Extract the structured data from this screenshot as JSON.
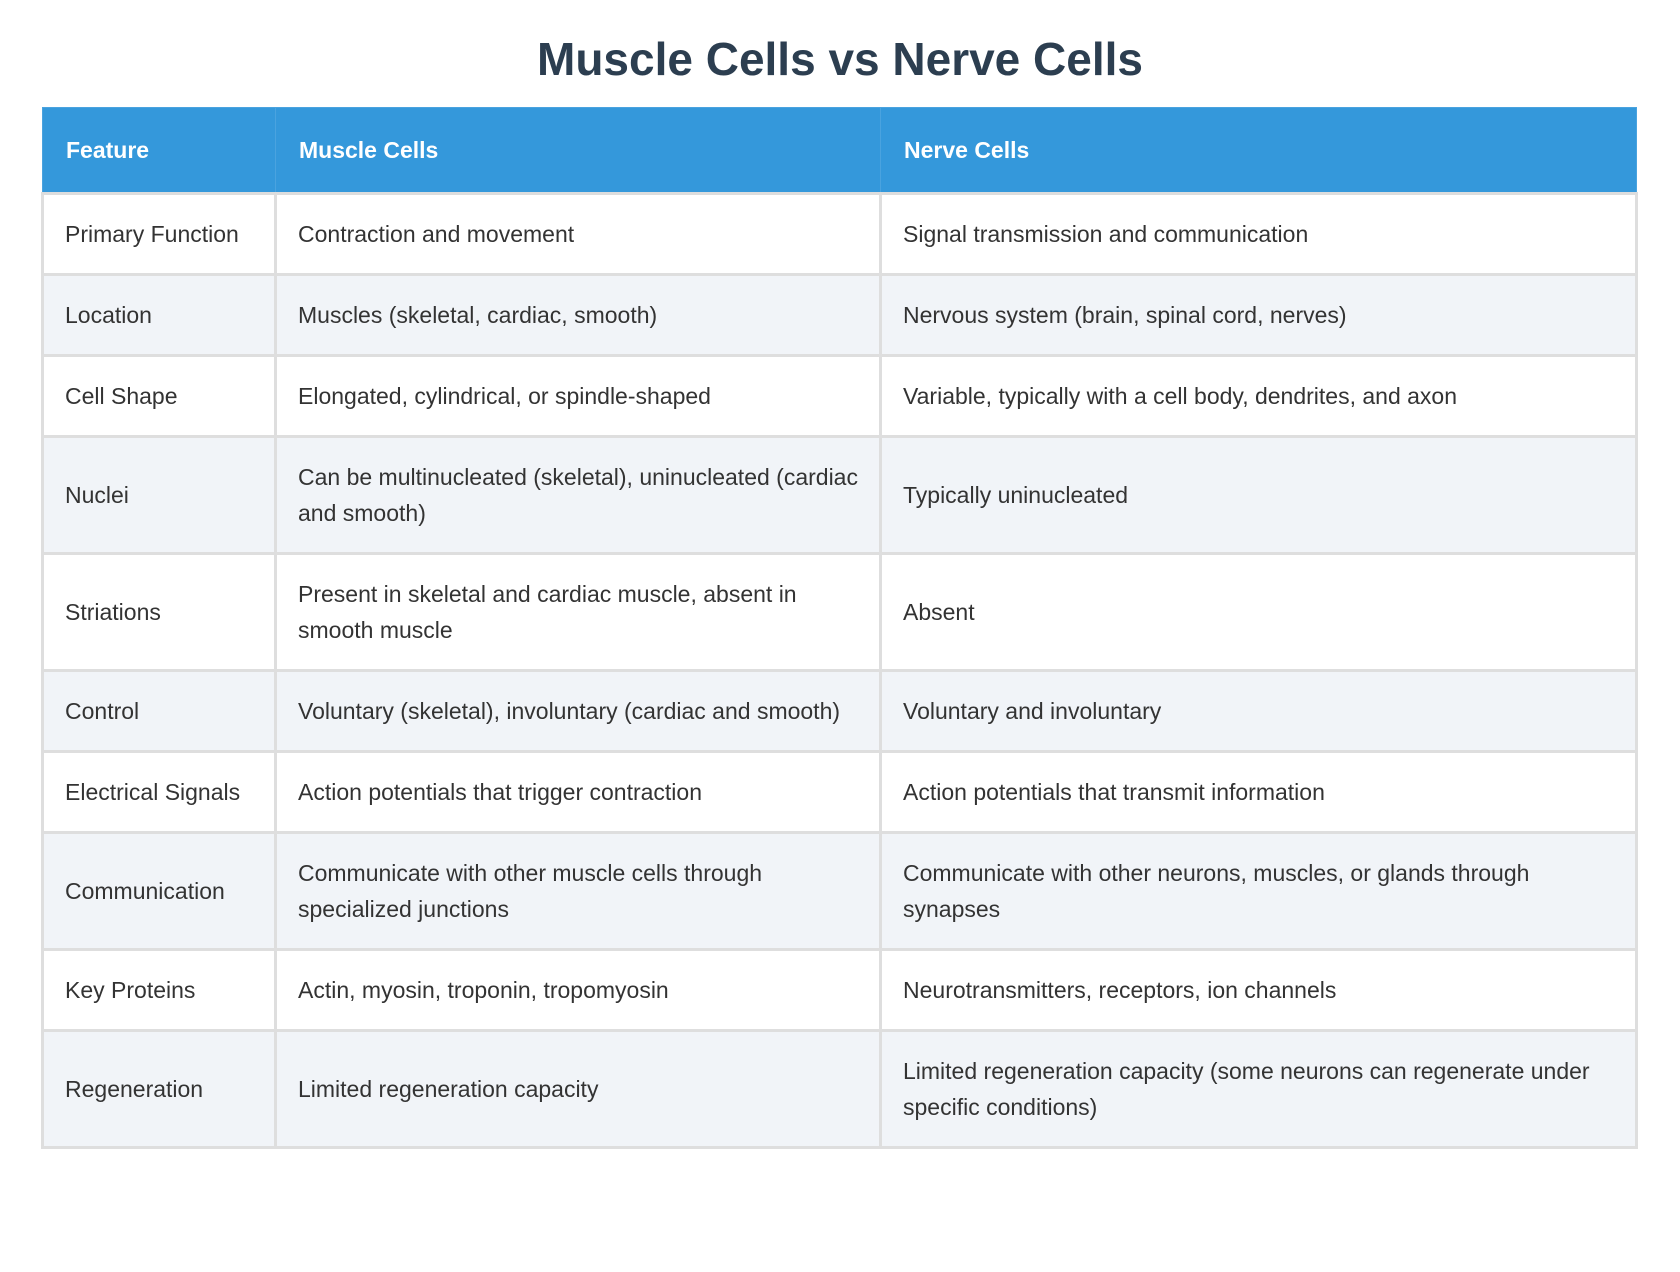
{
  "title": "Muscle Cells vs Nerve Cells",
  "table": {
    "headers": [
      "Feature",
      "Muscle Cells",
      "Nerve Cells"
    ],
    "rows": [
      [
        "Primary Function",
        "Contraction and movement",
        "Signal transmission and communication"
      ],
      [
        "Location",
        "Muscles (skeletal, cardiac, smooth)",
        "Nervous system (brain, spinal cord, nerves)"
      ],
      [
        "Cell Shape",
        "Elongated, cylindrical, or spindle-shaped",
        "Variable, typically with a cell body, dendrites, and axon"
      ],
      [
        "Nuclei",
        "Can be multinucleated (skeletal), uninucleated (cardiac and smooth)",
        "Typically uninucleated"
      ],
      [
        "Striations",
        "Present in skeletal and cardiac muscle, absent in smooth muscle",
        "Absent"
      ],
      [
        "Control",
        "Voluntary (skeletal), involuntary (cardiac and smooth)",
        "Voluntary and involuntary"
      ],
      [
        "Electrical Signals",
        "Action potentials that trigger contraction",
        "Action potentials that transmit information"
      ],
      [
        "Communication",
        "Communicate with other muscle cells through specialized junctions",
        "Communicate with other neurons, muscles, or glands through synapses"
      ],
      [
        "Key Proteins",
        "Actin, myosin, troponin, tropomyosin",
        "Neurotransmitters, receptors, ion channels"
      ],
      [
        "Regeneration",
        "Limited regeneration capacity",
        "Limited regeneration capacity (some neurons can regenerate under specific conditions)"
      ]
    ]
  },
  "colors": {
    "header_bg": "#3498db",
    "title": "#2c3e50",
    "alt_row": "#f1f4f8"
  }
}
